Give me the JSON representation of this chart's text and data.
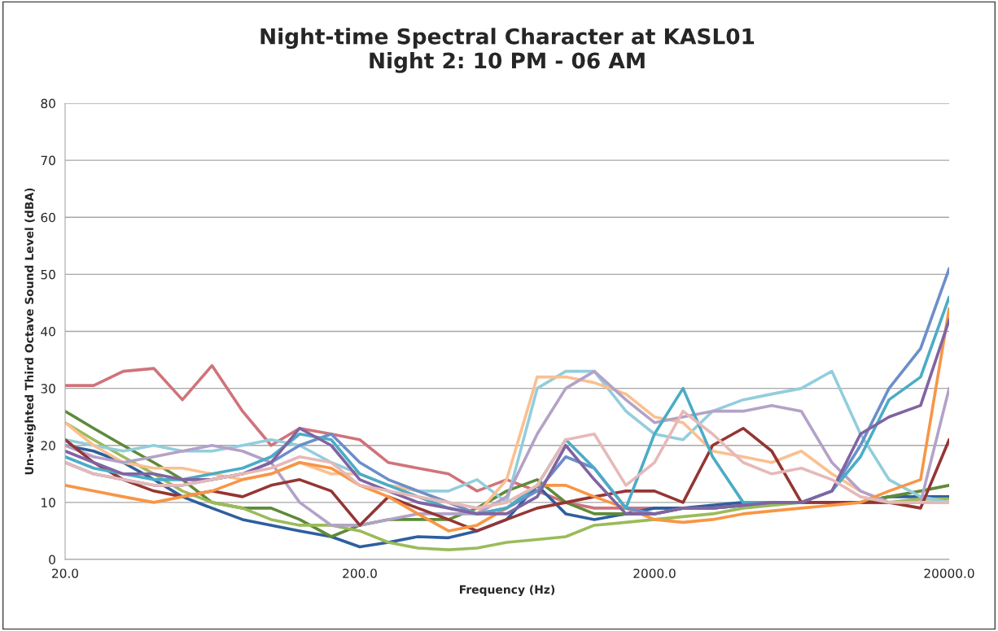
{
  "chart_data": {
    "type": "line",
    "title": "Night-time Spectral Character at KASL01\nNight 2: 10 PM - 06 AM",
    "xlabel": "Frequency (Hz)",
    "ylabel": "Un-weighted Third Octave Sound Level (dBA)",
    "log": "x",
    "grid": "y",
    "legend": false,
    "marker": "none",
    "line_style": "solid",
    "xlim": [
      20,
      20000
    ],
    "xticks": [
      {
        "value": 20,
        "label": "20.0"
      },
      {
        "value": 200,
        "label": "200.0"
      },
      {
        "value": 2000,
        "label": "2000.0"
      },
      {
        "value": 20000,
        "label": "20000.0"
      }
    ],
    "ylim": [
      0,
      80
    ],
    "yticks": [
      0,
      10,
      20,
      30,
      40,
      50,
      60,
      70,
      80
    ],
    "x": [
      20,
      25,
      31.5,
      40,
      50,
      63,
      80,
      100,
      125,
      160,
      200,
      250,
      315,
      400,
      500,
      630,
      800,
      1000,
      1250,
      1600,
      2000,
      2500,
      3150,
      4000,
      5000,
      6300,
      8000,
      10000,
      12500,
      16000,
      20000
    ],
    "series": [
      {
        "color": "#d0737a",
        "values": [
          30.5,
          30.5,
          33,
          33.5,
          28,
          34,
          26,
          20,
          23,
          22,
          21,
          17,
          16,
          15,
          12,
          14,
          12,
          10,
          9,
          9,
          9,
          9,
          9,
          9.5,
          10,
          10,
          10,
          10,
          10,
          10,
          10
        ]
      },
      {
        "color": "#2e5f9e",
        "values": [
          20,
          19,
          17,
          14,
          11,
          9,
          7,
          6,
          5,
          4,
          2.2,
          3,
          4,
          3.8,
          5,
          7,
          13,
          8,
          7,
          8,
          9,
          9,
          9.5,
          10,
          10,
          10,
          10,
          10,
          11,
          11,
          11
        ]
      },
      {
        "color": "#5e8a3a",
        "values": [
          26,
          23,
          20,
          17,
          14,
          10,
          9,
          9,
          7,
          4,
          6,
          7,
          7,
          7,
          9,
          12,
          14,
          10,
          8,
          8,
          8,
          9,
          9,
          9.5,
          10,
          10,
          10,
          10,
          11,
          12,
          13
        ]
      },
      {
        "color": "#9bbb59",
        "values": [
          24,
          21,
          18,
          15,
          12,
          10,
          9,
          7,
          6,
          6,
          5,
          3,
          2,
          1.7,
          2,
          3,
          3.5,
          4,
          6,
          6.5,
          7,
          7.5,
          8,
          9,
          9.5,
          10,
          10,
          10,
          10,
          10.6,
          10.6
        ]
      },
      {
        "color": "#93cddd",
        "values": [
          21,
          20,
          19,
          20,
          19,
          19,
          20,
          21,
          20,
          17,
          15,
          13,
          12,
          12,
          14,
          10,
          30,
          33,
          33,
          26,
          22,
          21,
          26,
          28,
          29,
          30,
          33,
          22,
          14,
          11,
          10
        ]
      },
      {
        "color": "#fac090",
        "values": [
          24,
          20,
          17,
          16,
          16,
          15,
          14,
          15,
          17,
          15,
          15,
          13,
          12,
          10,
          8,
          14,
          32,
          32,
          31,
          29,
          25,
          24,
          19,
          18,
          17,
          19,
          15,
          12,
          10,
          10,
          10
        ]
      },
      {
        "color": "#b3a2c7",
        "values": [
          20,
          18,
          17,
          18,
          19,
          20,
          19,
          17,
          10,
          6,
          6,
          7,
          8,
          8,
          8,
          11,
          22,
          30,
          33,
          28,
          24,
          25,
          26,
          26,
          27,
          26,
          17,
          12,
          10,
          10,
          30
        ]
      },
      {
        "color": "#943634",
        "values": [
          21,
          17,
          14,
          12,
          11,
          12,
          11,
          13,
          14,
          12,
          6,
          11,
          9,
          7,
          5,
          7,
          9,
          10,
          11,
          12,
          12,
          10,
          20,
          23,
          19,
          10,
          10,
          10,
          10,
          9,
          21
        ]
      },
      {
        "color": "#f79646",
        "values": [
          13,
          12,
          11,
          10,
          11,
          12,
          14,
          15,
          17,
          16,
          13,
          11,
          8,
          5,
          6,
          9,
          13,
          13,
          11,
          9,
          7,
          6.5,
          7,
          8,
          8.5,
          9,
          9.5,
          10,
          12,
          14,
          44
        ]
      },
      {
        "color": "#6b8fc9",
        "values": [
          17,
          15,
          14,
          13,
          13,
          14,
          15,
          17,
          20,
          22,
          17,
          14,
          12,
          10,
          8,
          9,
          12,
          18,
          16,
          9,
          8,
          9,
          9,
          9.5,
          10,
          10,
          12,
          20,
          30,
          37,
          51
        ]
      },
      {
        "color": "#4bacc6",
        "values": [
          18,
          16,
          15,
          14,
          14,
          15,
          16,
          18,
          22,
          21,
          15,
          13,
          11,
          9,
          8,
          9,
          13,
          21,
          16,
          9,
          22,
          30,
          18,
          10,
          10,
          10,
          12,
          18,
          28,
          32,
          46
        ]
      },
      {
        "color": "#8064a2",
        "values": [
          19,
          17,
          15,
          15,
          14,
          14,
          15,
          17,
          23,
          20,
          14,
          12,
          10,
          9,
          8,
          8,
          11,
          20,
          14,
          8,
          8,
          9,
          9,
          9.5,
          10,
          10,
          12,
          22,
          25,
          27,
          42
        ]
      },
      {
        "color": "#e6b9b8",
        "values": [
          17,
          15,
          14,
          13,
          13,
          14,
          15,
          16,
          18,
          17,
          13,
          12,
          11,
          10,
          9,
          10,
          13,
          21,
          22,
          13,
          17,
          26,
          22,
          17,
          15,
          16,
          14,
          11,
          10,
          10,
          10
        ]
      }
    ]
  }
}
